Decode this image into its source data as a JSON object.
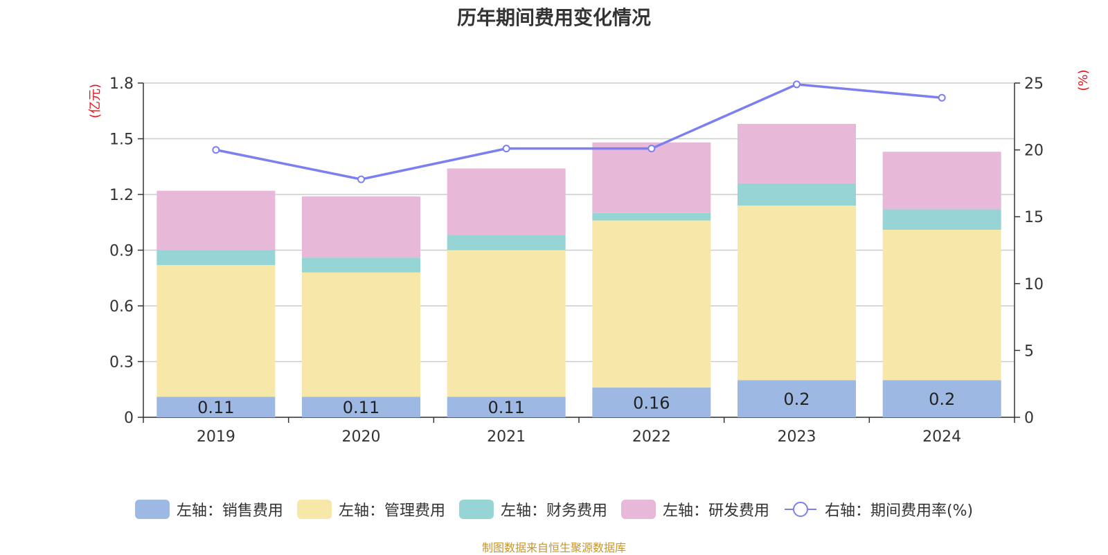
{
  "title": "历年期间费用变化情况",
  "source": "制图数据来自恒生聚源数据库",
  "chart_data": {
    "type": "bar",
    "stacked": true,
    "categories": [
      "2019",
      "2020",
      "2021",
      "2022",
      "2023",
      "2024"
    ],
    "left_axis": {
      "unit_label": "(亿元)",
      "ylim": [
        0,
        1.8
      ],
      "ticks": [
        "0",
        "0.3",
        "0.6",
        "0.9",
        "1.2",
        "1.5",
        "1.8"
      ]
    },
    "right_axis": {
      "unit_label": "(%)",
      "ylim": [
        0,
        25
      ],
      "ticks": [
        "0",
        "5",
        "10",
        "15",
        "20",
        "25"
      ]
    },
    "grid": true,
    "legend_position": "bottom",
    "series": [
      {
        "name": "左轴：销售费用",
        "axis": "left",
        "type": "bar",
        "color": "#9db8e2",
        "values": [
          0.11,
          0.11,
          0.11,
          0.16,
          0.2,
          0.2
        ],
        "show_labels": true,
        "labels": [
          "0.11",
          "0.11",
          "0.11",
          "0.16",
          "0.2",
          "0.2"
        ]
      },
      {
        "name": "左轴：管理费用",
        "axis": "left",
        "type": "bar",
        "color": "#f7e7a8",
        "values": [
          0.71,
          0.67,
          0.79,
          0.9,
          0.94,
          0.81
        ]
      },
      {
        "name": "左轴：财务费用",
        "axis": "left",
        "type": "bar",
        "color": "#97d4d5",
        "values": [
          0.08,
          0.08,
          0.08,
          0.04,
          0.12,
          0.11
        ]
      },
      {
        "name": "左轴：研发费用",
        "axis": "left",
        "type": "bar",
        "color": "#e7b8d8",
        "values": [
          0.32,
          0.33,
          0.36,
          0.38,
          0.32,
          0.31
        ]
      },
      {
        "name": "右轴：期间费用率(%)",
        "axis": "right",
        "type": "line",
        "color": "#7b7ff0",
        "values": [
          20.0,
          17.8,
          20.1,
          20.1,
          24.9,
          23.9
        ]
      }
    ]
  }
}
